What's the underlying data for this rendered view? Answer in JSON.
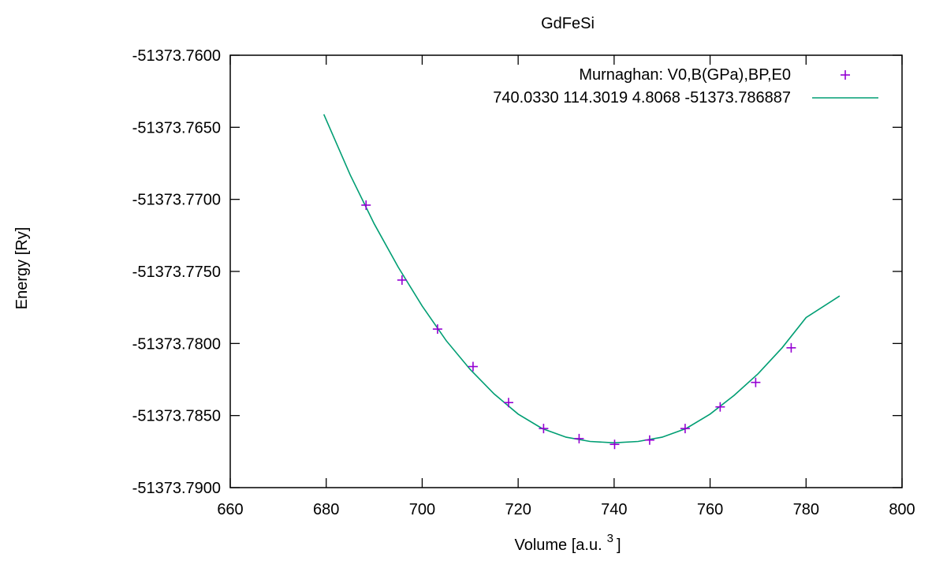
{
  "chart_data": {
    "type": "scatter",
    "title": "GdFeSi",
    "xlabel": "Volume [a.u.",
    "xlabel_superscript": "3",
    "xlabel_suffix": "]",
    "ylabel": "Energy [Ry]",
    "xlim": [
      660,
      800
    ],
    "ylim": [
      -51373.79,
      -51373.76
    ],
    "x_ticks": [
      660,
      680,
      700,
      720,
      740,
      760,
      780,
      800
    ],
    "y_ticks": [
      -51373.76,
      -51373.765,
      -51373.77,
      -51373.775,
      -51373.78,
      -51373.785,
      -51373.79
    ],
    "x_tick_labels": [
      "660",
      "680",
      "700",
      "720",
      "740",
      "760",
      "780",
      "800"
    ],
    "y_tick_labels": [
      "-51373.7600",
      "-51373.7650",
      "-51373.7700",
      "-51373.7750",
      "-51373.7800",
      "-51373.7850",
      "-51373.7900"
    ],
    "grid": false,
    "legend_position": "top-right",
    "series": [
      {
        "name": "Murnaghan: V0,B(GPa),BP,E0",
        "kind": "points",
        "marker": "plus",
        "color": "#9400D3",
        "x": [
          688.3,
          695.8,
          703.2,
          710.6,
          718.0,
          725.3,
          732.7,
          740.1,
          747.4,
          754.8,
          762.1,
          769.5,
          776.9
        ],
        "y": [
          -51373.7704,
          -51373.7756,
          -51373.779,
          -51373.7816,
          -51373.7841,
          -51373.7859,
          -51373.7866,
          -51373.787,
          -51373.7867,
          -51373.7859,
          -51373.7844,
          -51373.7827,
          -51373.7803
        ]
      },
      {
        "name": "740.0330 114.3019 4.8068 -51373.786887",
        "kind": "line",
        "color": "#009E73",
        "x": [
          679.5,
          685,
          690,
          695,
          700,
          705,
          710,
          715,
          720,
          725,
          730,
          735,
          740,
          745,
          750,
          755,
          760,
          765,
          770,
          775,
          780,
          787.0
        ],
        "y": [
          -51373.7641,
          -51373.7683,
          -51373.7717,
          -51373.7747,
          -51373.7774,
          -51373.7798,
          -51373.7818,
          -51373.7835,
          -51373.7849,
          -51373.7859,
          -51373.7865,
          -51373.7868,
          -51373.78689,
          -51373.7868,
          -51373.7865,
          -51373.7859,
          -51373.7849,
          -51373.7836,
          -51373.7821,
          -51373.7803,
          -51373.7782,
          -51373.7767
        ]
      }
    ]
  }
}
